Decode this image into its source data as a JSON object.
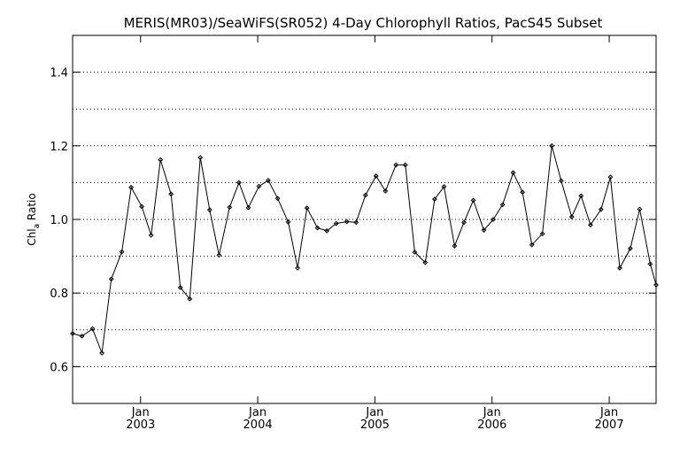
{
  "chart_data": {
    "type": "line",
    "title": "MERIS(MR03)/SeaWiFS(SR052) 4-Day Chlorophyll Ratios, PacS45 Subset",
    "ylabel": "Chl",
    "ylabel_subscript": "a",
    "ylabel_suffix": " Ratio",
    "xlabel": "",
    "ylim": [
      0.5,
      1.5
    ],
    "xlim": [
      2002.42,
      2007.4
    ],
    "yticks": [
      0.6,
      0.8,
      1.0,
      1.2,
      1.4
    ],
    "ytick_labels": [
      "0.6",
      "0.8",
      "1.0",
      "1.2",
      "1.4"
    ],
    "xticks": [
      {
        "x": 2003.0,
        "month": "Jan",
        "year": "2003"
      },
      {
        "x": 2004.0,
        "month": "Jan",
        "year": "2004"
      },
      {
        "x": 2005.0,
        "month": "Jan",
        "year": "2005"
      },
      {
        "x": 2006.0,
        "month": "Jan",
        "year": "2006"
      },
      {
        "x": 2007.0,
        "month": "Jan",
        "year": "2007"
      }
    ],
    "grid": "horizontal dotted",
    "series": [
      {
        "color": "#000000",
        "marker": "diamond",
        "x": [
          2002.42,
          2002.5,
          2002.59,
          2002.67,
          2002.75,
          2002.84,
          2002.92,
          2003.01,
          2003.09,
          2003.17,
          2003.26,
          2003.34,
          2003.42,
          2003.51,
          2003.59,
          2003.67,
          2003.76,
          2003.84,
          2003.92,
          2004.01,
          2004.09,
          2004.17,
          2004.26,
          2004.34,
          2004.42,
          2004.51,
          2004.59,
          2004.67,
          2004.76,
          2004.84,
          2004.92,
          2005.01,
          2005.09,
          2005.18,
          2005.26,
          2005.34,
          2005.43,
          2005.51,
          2005.59,
          2005.68,
          2005.76,
          2005.84,
          2005.93,
          2006.01,
          2006.09,
          2006.18,
          2006.26,
          2006.34,
          2006.43,
          2006.51,
          2006.59,
          2006.68,
          2006.76,
          2006.84,
          2006.93,
          2007.01,
          2007.09,
          2007.18,
          2007.26,
          2007.35,
          2007.4
        ],
        "y": [
          0.69,
          0.683,
          0.703,
          0.637,
          0.838,
          0.912,
          1.087,
          1.035,
          0.957,
          1.162,
          1.069,
          0.815,
          0.784,
          1.168,
          1.026,
          0.903,
          1.033,
          1.1,
          1.032,
          1.09,
          1.106,
          1.057,
          0.993,
          0.868,
          1.031,
          0.977,
          0.969,
          0.989,
          0.994,
          0.992,
          1.066,
          1.118,
          1.077,
          1.148,
          1.148,
          0.911,
          0.883,
          1.055,
          1.089,
          0.928,
          0.992,
          1.052,
          0.971,
          1.0,
          1.04,
          1.127,
          1.074,
          0.931,
          0.961,
          1.2,
          1.105,
          1.007,
          1.064,
          0.985,
          1.027,
          1.115,
          0.868,
          0.921,
          1.028,
          0.879,
          0.822
        ]
      }
    ]
  }
}
